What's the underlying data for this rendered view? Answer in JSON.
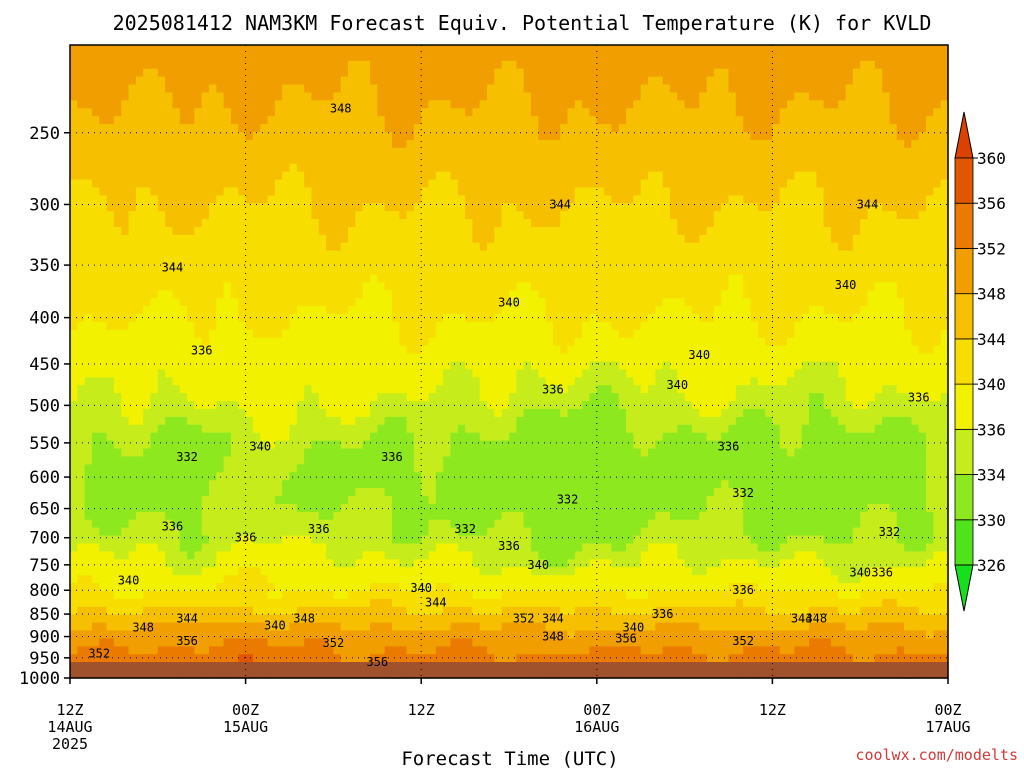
{
  "chart_data": {
    "type": "heatmap",
    "title": "2025081412 NAM3KM Forecast Equiv. Potential Temperature (K) for KVLD",
    "xlabel": "Forecast Time (UTC)",
    "ylabel": "",
    "x_ticks": [
      {
        "hour": 0,
        "lines": [
          "12Z",
          "14AUG",
          "2025"
        ]
      },
      {
        "hour": 12,
        "lines": [
          "00Z",
          "15AUG"
        ]
      },
      {
        "hour": 24,
        "lines": [
          "12Z"
        ]
      },
      {
        "hour": 36,
        "lines": [
          "00Z",
          "16AUG"
        ]
      },
      {
        "hour": 48,
        "lines": [
          "12Z"
        ]
      },
      {
        "hour": 60,
        "lines": [
          "00Z",
          "17AUG"
        ]
      }
    ],
    "xlim": [
      0,
      60
    ],
    "y_ticks": [
      250,
      300,
      350,
      400,
      450,
      500,
      550,
      600,
      650,
      700,
      750,
      800,
      850,
      900,
      950,
      1000
    ],
    "ylim": [
      1000,
      200
    ],
    "y_scale": "log-pressure",
    "grid": true,
    "colorbar": {
      "ticks": [
        326,
        330,
        334,
        336,
        340,
        344,
        348,
        352,
        356,
        360
      ],
      "colors": [
        "#16df1b",
        "#50e31a",
        "#8ee81f",
        "#c6ec1b",
        "#f2f200",
        "#f7de00",
        "#f6c000",
        "#f19f00",
        "#eb7a00",
        "#e35600",
        "#db4200"
      ]
    },
    "profile": {
      "pressure": [
        1000,
        950,
        900,
        850,
        800,
        750,
        700,
        650,
        600,
        550,
        500,
        450,
        400,
        350,
        300,
        250,
        200
      ],
      "theta_e": [
        356,
        353,
        350,
        345,
        340,
        337,
        335,
        334,
        333,
        334,
        336,
        338,
        340,
        342,
        344,
        347,
        350
      ]
    },
    "contour_labels": [
      {
        "text": "348",
        "hour": 18.5,
        "p": 235
      },
      {
        "text": "344",
        "hour": 33.5,
        "p": 300
      },
      {
        "text": "344",
        "hour": 54.5,
        "p": 300
      },
      {
        "text": "344",
        "hour": 7.0,
        "p": 352
      },
      {
        "text": "340",
        "hour": 30.0,
        "p": 385
      },
      {
        "text": "340",
        "hour": 53.0,
        "p": 368
      },
      {
        "text": "336",
        "hour": 9.0,
        "p": 435
      },
      {
        "text": "336",
        "hour": 33.0,
        "p": 480
      },
      {
        "text": "340",
        "hour": 43.0,
        "p": 440
      },
      {
        "text": "340",
        "hour": 41.5,
        "p": 475
      },
      {
        "text": "336",
        "hour": 58.0,
        "p": 490
      },
      {
        "text": "332",
        "hour": 8.0,
        "p": 570
      },
      {
        "text": "340",
        "hour": 13.0,
        "p": 555
      },
      {
        "text": "336",
        "hour": 22.0,
        "p": 570
      },
      {
        "text": "336",
        "hour": 45.0,
        "p": 555
      },
      {
        "text": "332",
        "hour": 34.0,
        "p": 635
      },
      {
        "text": "332",
        "hour": 46.0,
        "p": 625
      },
      {
        "text": "336",
        "hour": 7.0,
        "p": 680
      },
      {
        "text": "336",
        "hour": 12.0,
        "p": 700
      },
      {
        "text": "336",
        "hour": 17.0,
        "p": 685
      },
      {
        "text": "332",
        "hour": 27.0,
        "p": 685
      },
      {
        "text": "332",
        "hour": 56.0,
        "p": 690
      },
      {
        "text": "336",
        "hour": 30.0,
        "p": 715
      },
      {
        "text": "340",
        "hour": 32.0,
        "p": 750
      },
      {
        "text": "340",
        "hour": 4.0,
        "p": 780
      },
      {
        "text": "340",
        "hour": 24.0,
        "p": 795
      },
      {
        "text": "344",
        "hour": 25.0,
        "p": 825
      },
      {
        "text": "340",
        "hour": 54.0,
        "p": 765
      },
      {
        "text": "336",
        "hour": 55.5,
        "p": 765
      },
      {
        "text": "336",
        "hour": 46.0,
        "p": 800
      },
      {
        "text": "336",
        "hour": 40.5,
        "p": 850
      },
      {
        "text": "344",
        "hour": 8.0,
        "p": 860
      },
      {
        "text": "348",
        "hour": 5.0,
        "p": 880
      },
      {
        "text": "356",
        "hour": 8.0,
        "p": 910
      },
      {
        "text": "352",
        "hour": 2.0,
        "p": 940
      },
      {
        "text": "340",
        "hour": 14.0,
        "p": 875
      },
      {
        "text": "348",
        "hour": 16.0,
        "p": 860
      },
      {
        "text": "352",
        "hour": 18.0,
        "p": 915
      },
      {
        "text": "356",
        "hour": 21.0,
        "p": 960
      },
      {
        "text": "352",
        "hour": 31.0,
        "p": 860
      },
      {
        "text": "344",
        "hour": 33.0,
        "p": 860
      },
      {
        "text": "348",
        "hour": 33.0,
        "p": 900
      },
      {
        "text": "356",
        "hour": 38.0,
        "p": 905
      },
      {
        "text": "340",
        "hour": 38.5,
        "p": 880
      },
      {
        "text": "344",
        "hour": 50.0,
        "p": 860
      },
      {
        "text": "348",
        "hour": 51.0,
        "p": 860
      },
      {
        "text": "352",
        "hour": 46.0,
        "p": 910
      }
    ]
  },
  "credit": "coolwx.com/modelts"
}
